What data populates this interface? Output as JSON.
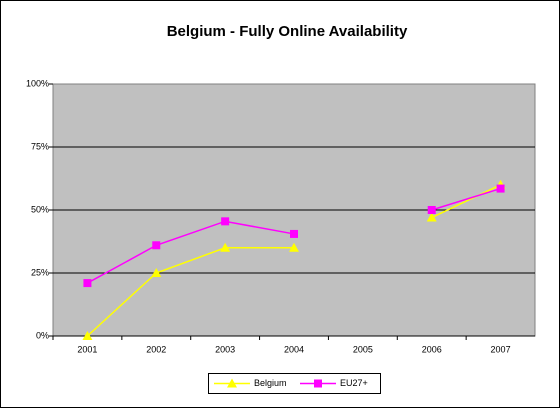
{
  "chart_data": {
    "type": "line",
    "title": "Belgium - Fully Online Availability",
    "categories": [
      "2001",
      "2002",
      "2003",
      "2004",
      "2005",
      "2006",
      "2007"
    ],
    "series": [
      {
        "name": "Belgium",
        "color": "#ffff00",
        "marker": "triangle",
        "values": [
          0,
          25,
          35,
          35,
          null,
          47,
          60
        ]
      },
      {
        "name": "EU27+",
        "color": "#ff00ff",
        "marker": "square",
        "values": [
          21,
          36,
          45.5,
          40.5,
          null,
          50,
          58.5
        ]
      }
    ],
    "ylim": [
      0,
      100
    ],
    "yticks": [
      {
        "value": 0,
        "label": "0%"
      },
      {
        "value": 25,
        "label": "25%"
      },
      {
        "value": 50,
        "label": "50%"
      },
      {
        "value": 75,
        "label": "75%"
      },
      {
        "value": 100,
        "label": "100%"
      }
    ],
    "grid": true,
    "legend": "bottom"
  }
}
